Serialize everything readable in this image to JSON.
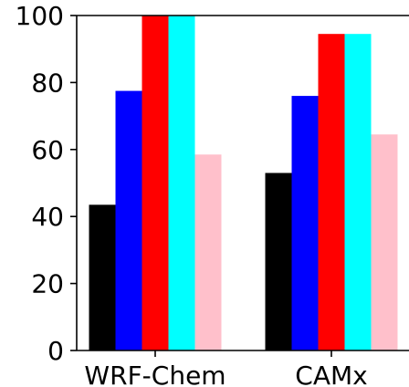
{
  "chart_data": {
    "type": "bar",
    "categories": [
      "WRF-Chem",
      "CAMx"
    ],
    "series": [
      {
        "color": "#000000",
        "values": [
          43.5,
          53
        ]
      },
      {
        "color": "#0000ff",
        "values": [
          77.5,
          76
        ]
      },
      {
        "color": "#ff0000",
        "values": [
          100,
          94.5
        ]
      },
      {
        "color": "#00ffff",
        "values": [
          100,
          94.5
        ]
      },
      {
        "color": "#ffc0cb",
        "values": [
          58.5,
          64.5
        ]
      }
    ],
    "ylim": [
      0,
      100
    ],
    "yticks": [
      "0",
      "20",
      "40",
      "60",
      "80",
      "100"
    ],
    "grid": false
  }
}
